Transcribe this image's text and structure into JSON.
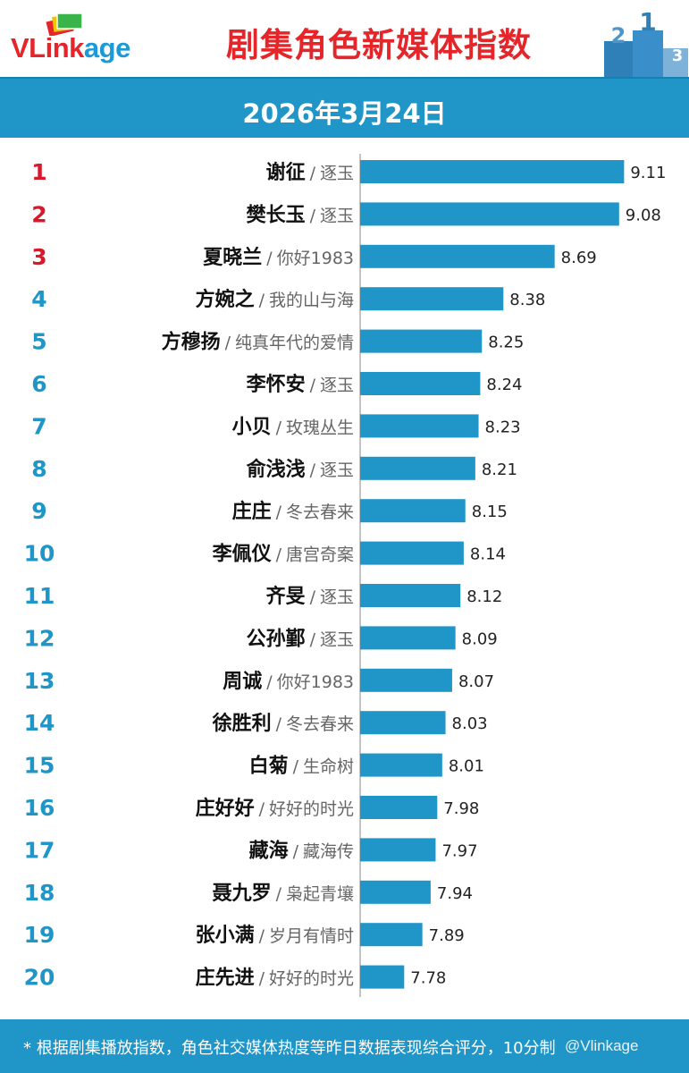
{
  "header": {
    "logo_text_main": "VLink",
    "logo_text_tail": "age",
    "title": "剧集角色新媒体指数",
    "podium_digits": [
      "2",
      "1",
      "3"
    ]
  },
  "date": "2026年3月24日",
  "chart_data": {
    "type": "bar",
    "orientation": "horizontal",
    "title": "剧集角色新媒体指数",
    "subtitle": "2026年3月24日",
    "scale": "10分制",
    "ranks": [
      "1",
      "2",
      "3",
      "4",
      "5",
      "6",
      "7",
      "8",
      "9",
      "10",
      "11",
      "12",
      "13",
      "14",
      "15",
      "16",
      "17",
      "18",
      "19",
      "20"
    ],
    "roles": [
      "谢征",
      "樊长玉",
      "夏晓兰",
      "方婉之",
      "方穆扬",
      "李怀安",
      "小贝",
      "俞浅浅",
      "庄庄",
      "李佩仪",
      "齐旻",
      "公孙鄞",
      "周诚",
      "徐胜利",
      "白菊",
      "庄好好",
      "藏海",
      "聂九罗",
      "张小满",
      "庄先进"
    ],
    "dramas": [
      "逐玉",
      "逐玉",
      "你好1983",
      "我的山与海",
      "纯真年代的爱情",
      "逐玉",
      "玫瑰丛生",
      "逐玉",
      "冬去春来",
      "唐宫奇案",
      "逐玉",
      "逐玉",
      "你好1983",
      "冬去春来",
      "生命树",
      "好好的时光",
      "藏海传",
      "枭起青壤",
      "岁月有情时",
      "好好的时光"
    ],
    "values": [
      9.11,
      9.08,
      8.69,
      8.38,
      8.25,
      8.24,
      8.23,
      8.21,
      8.15,
      8.14,
      8.12,
      8.09,
      8.07,
      8.03,
      8.01,
      7.98,
      7.97,
      7.94,
      7.89,
      7.78
    ],
    "value_labels": [
      "9.11",
      "9.08",
      "8.69",
      "8.38",
      "8.25",
      "8.24",
      "8.23",
      "8.21",
      "8.15",
      "8.14",
      "8.12",
      "8.09",
      "8.07",
      "8.03",
      "8.01",
      "7.98",
      "7.97",
      "7.94",
      "7.89",
      "7.78"
    ],
    "xlim": [
      7.6,
      9.12
    ],
    "colors": {
      "bar": "#1f96c7",
      "rank_top": "#d7192b",
      "rank_other": "#1f96c7",
      "role": "#111111",
      "drama": "#666666"
    }
  },
  "footer": {
    "note": "* 根据剧集播放指数，角色社交媒体热度等昨日数据表现综合评分，10分制",
    "watermark": "@Vlinkage"
  }
}
